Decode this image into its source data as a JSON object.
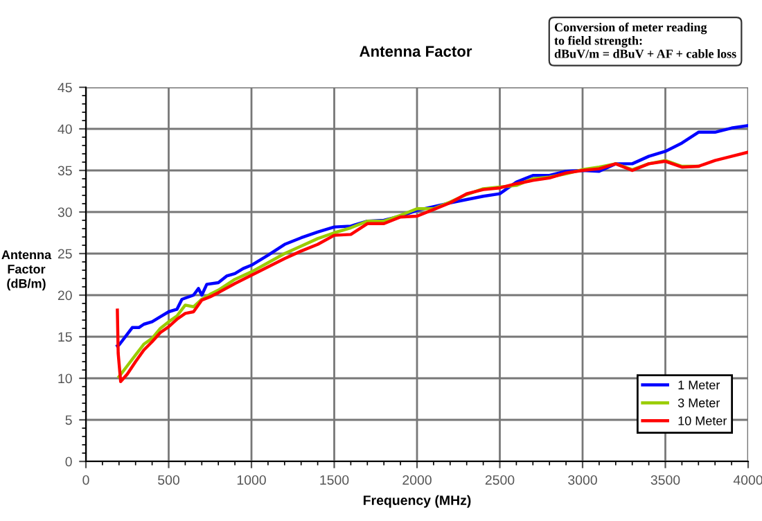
{
  "chart_data": {
    "type": "line",
    "title": "Antenna Factor",
    "xlabel": "Frequency (MHz)",
    "ylabel": "Antenna\nFactor\n(dB/m)",
    "annotations": [
      "Conversion of meter reading\nto field strength:\ndBuV/m = dBuV + AF + cable loss"
    ],
    "xlim": [
      0,
      4000
    ],
    "xticks": [
      0,
      500,
      1000,
      1500,
      2000,
      2500,
      3000,
      3500,
      4000
    ],
    "ylim": [
      0,
      45
    ],
    "yticks": [
      0,
      5,
      10,
      15,
      20,
      25,
      30,
      35,
      40,
      45
    ],
    "grid": true,
    "legend": "bottom right",
    "marker": "none",
    "line_style": "solid",
    "series": [
      {
        "name": "1 Meter",
        "color": "#0000ff",
        "x": [
          190,
          200,
          250,
          280,
          320,
          350,
          400,
          450,
          500,
          550,
          580,
          650,
          680,
          700,
          730,
          800,
          850,
          900,
          950,
          1000,
          1100,
          1200,
          1300,
          1400,
          1500,
          1600,
          1700,
          1800,
          1900,
          2000,
          2200,
          2400,
          2500,
          2600,
          2700,
          2800,
          2900,
          3000,
          3100,
          3200,
          3300,
          3400,
          3500,
          3600,
          3700,
          3800,
          3900,
          4000
        ],
        "values": [
          13.9,
          14,
          15.3,
          16.1,
          16.1,
          16.5,
          16.8,
          17.4,
          18,
          18.3,
          19.5,
          20.0,
          20.8,
          20,
          21.3,
          21.5,
          22.3,
          22.6,
          23.2,
          23.6,
          24.8,
          26.1,
          26.9,
          27.6,
          28.2,
          28.3,
          28.9,
          29,
          29.5,
          30.2,
          31.1,
          31.9,
          32.2,
          33.6,
          34.4,
          34.4,
          34.9,
          35,
          34.9,
          35.8,
          35.8,
          36.7,
          37.3,
          38.3,
          39.6,
          39.6,
          40.1,
          40.4
        ]
      },
      {
        "name": "3 Meter",
        "color": "#99cc00",
        "x": [
          200,
          250,
          300,
          350,
          400,
          450,
          500,
          550,
          600,
          650,
          700,
          750,
          800,
          900,
          1000,
          1100,
          1200,
          1300,
          1400,
          1500,
          1600,
          1700,
          1800,
          1900,
          2000,
          2100,
          2200,
          2300,
          2400,
          2500,
          2600,
          2700,
          2800,
          2900,
          3000,
          3100,
          3200,
          3300,
          3400,
          3500,
          3600,
          3700
        ],
        "values": [
          10.2,
          11.5,
          12.8,
          14.1,
          14.8,
          16,
          16.8,
          17.5,
          18.8,
          18.6,
          19.5,
          20.1,
          20.6,
          21.9,
          22.8,
          23.9,
          25,
          25.9,
          26.8,
          27.5,
          28.1,
          28.9,
          28.9,
          29.6,
          30.4,
          30.4,
          31.2,
          32.1,
          32.8,
          33.0,
          33.2,
          34,
          34.2,
          34.6,
          35.1,
          35.4,
          35.8,
          35.1,
          35.8,
          36.2,
          35.5,
          35.5
        ]
      },
      {
        "name": "10 Meter",
        "color": "#ff0000",
        "x": [
          190,
          195,
          210,
          250,
          300,
          350,
          400,
          450,
          500,
          550,
          600,
          650,
          700,
          750,
          800,
          900,
          1000,
          1100,
          1200,
          1300,
          1400,
          1500,
          1600,
          1700,
          1800,
          1900,
          2000,
          2100,
          2200,
          2300,
          2400,
          2500,
          2600,
          2700,
          2800,
          2900,
          3000,
          3100,
          3200,
          3300,
          3400,
          3500,
          3600,
          3700,
          3800,
          3900,
          4000
        ],
        "values": [
          18.2,
          13,
          9.6,
          10.5,
          12,
          13.4,
          14.4,
          15.5,
          16.2,
          17.1,
          17.8,
          18,
          19.4,
          19.8,
          20.3,
          21.4,
          22.4,
          23.4,
          24.4,
          25.3,
          26.1,
          27.2,
          27.3,
          28.6,
          28.6,
          29.4,
          29.5,
          30.3,
          31.1,
          32.2,
          32.7,
          32.9,
          33.4,
          33.8,
          34.1,
          34.7,
          35,
          35.2,
          35.8,
          35,
          35.8,
          36.1,
          35.4,
          35.5,
          36.2,
          36.7,
          37.2
        ]
      }
    ]
  }
}
